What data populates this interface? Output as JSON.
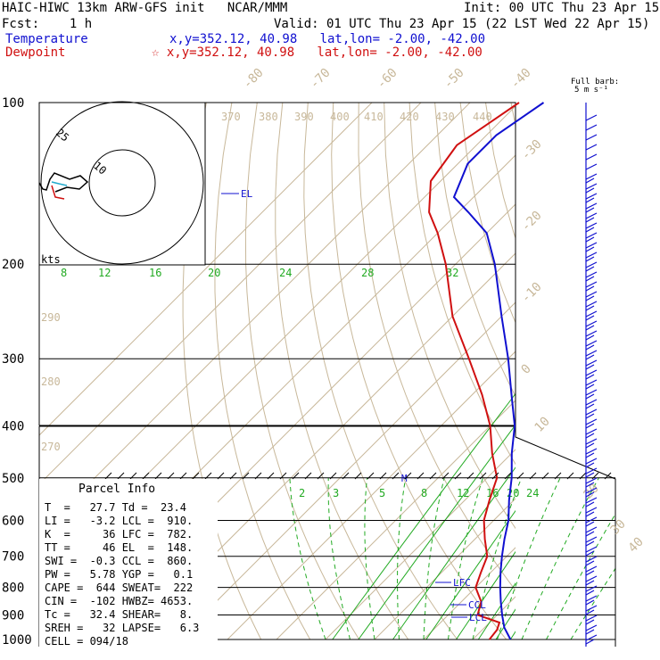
{
  "header": {
    "title": "HAIC-HIWC 13km ARW-GFS init   NCAR/MMM",
    "init": "Init: 00 UTC Thu 23 Apr 15",
    "fcst": "Fcst:    1 h",
    "valid": "Valid: 01 UTC Thu 23 Apr 15 (22 LST Wed 22 Apr 15)",
    "temp_label": "Temperature",
    "temp_loc": "x,y=352.12, 40.98   lat,lon= -2.00, -42.00",
    "dew_label": "Dewpoint",
    "dew_loc": "☆ x,y=352.12, 40.98   lat,lon= -2.00, -42.00"
  },
  "barb_legend": {
    "line1": "Full barb:",
    "line2": "5 m s⁻¹"
  },
  "hodograph": {
    "ring_labels": [
      "25",
      "10"
    ],
    "units": "kts"
  },
  "parcel_info": {
    "title": "Parcel Info",
    "rows": [
      "T  =   27.7 Td =  23.4",
      "LI =   -3.2 LCL =  910.",
      "K  =     36 LFC =  782.",
      "TT =     46 EL  =  148.",
      "SWI =  -0.3 CCL =  860.",
      "PW =   5.78 YGP =   0.1",
      "CAPE =  644 SWEAT=  222",
      "CIN =  -102 HWBZ= 4653.",
      "Tc =   32.4 SHEAR=   8.",
      "SREH =   32 LAPSE=   6.3",
      "CELL = 094/18"
    ]
  },
  "chart_data": {
    "type": "skew-t",
    "y_axis": "pressure (hPa)",
    "ylim": [
      1000,
      100
    ],
    "pressure_ticks": [
      100,
      200,
      300,
      400,
      500,
      600,
      700,
      800,
      900,
      1000
    ],
    "isotherm_labels": [
      "-80",
      "-70",
      "-60",
      "-50",
      "-40",
      "-30",
      "-20",
      "-10",
      "0",
      "10",
      "20",
      "30",
      "40"
    ],
    "theta_labels": [
      "370",
      "380",
      "390",
      "400",
      "410",
      "420",
      "430",
      "440",
      "290",
      "280",
      "270"
    ],
    "mixing_ratio_labels_upper": [
      "8",
      "12",
      "16",
      "20",
      "24",
      "28",
      "32"
    ],
    "mixing_ratio_labels_lower": [
      "2",
      "3",
      "5",
      "8",
      "12",
      "16",
      "20",
      "24"
    ],
    "level_labels": [
      "EL",
      "LFC",
      "CCL",
      "LCL",
      "M"
    ],
    "series": [
      {
        "name": "Temperature",
        "color": "#1010d0",
        "points": [
          [
            1000,
            27.7
          ],
          [
            950,
            24
          ],
          [
            900,
            21
          ],
          [
            850,
            18
          ],
          [
            800,
            15
          ],
          [
            750,
            12
          ],
          [
            700,
            9
          ],
          [
            650,
            6
          ],
          [
            600,
            3
          ],
          [
            550,
            -1
          ],
          [
            500,
            -5
          ],
          [
            450,
            -10
          ],
          [
            400,
            -15
          ],
          [
            350,
            -22
          ],
          [
            300,
            -30
          ],
          [
            250,
            -40
          ],
          [
            200,
            -52
          ],
          [
            175,
            -60
          ],
          [
            160,
            -68
          ],
          [
            150,
            -74
          ],
          [
            130,
            -78
          ],
          [
            115,
            -78
          ],
          [
            100,
            -75
          ]
        ]
      },
      {
        "name": "Dewpoint",
        "color": "#d01010",
        "points": [
          [
            1000,
            23.4
          ],
          [
            960,
            23
          ],
          [
            930,
            22
          ],
          [
            900,
            16
          ],
          [
            850,
            14
          ],
          [
            800,
            10
          ],
          [
            750,
            8
          ],
          [
            700,
            6
          ],
          [
            650,
            2
          ],
          [
            600,
            -2
          ],
          [
            550,
            -5
          ],
          [
            500,
            -8
          ],
          [
            450,
            -14
          ],
          [
            400,
            -20
          ],
          [
            350,
            -28
          ],
          [
            300,
            -38
          ],
          [
            250,
            -50
          ],
          [
            200,
            -62
          ],
          [
            175,
            -70
          ],
          [
            160,
            -76
          ],
          [
            140,
            -82
          ],
          [
            120,
            -84
          ],
          [
            100,
            -80
          ]
        ]
      }
    ]
  }
}
